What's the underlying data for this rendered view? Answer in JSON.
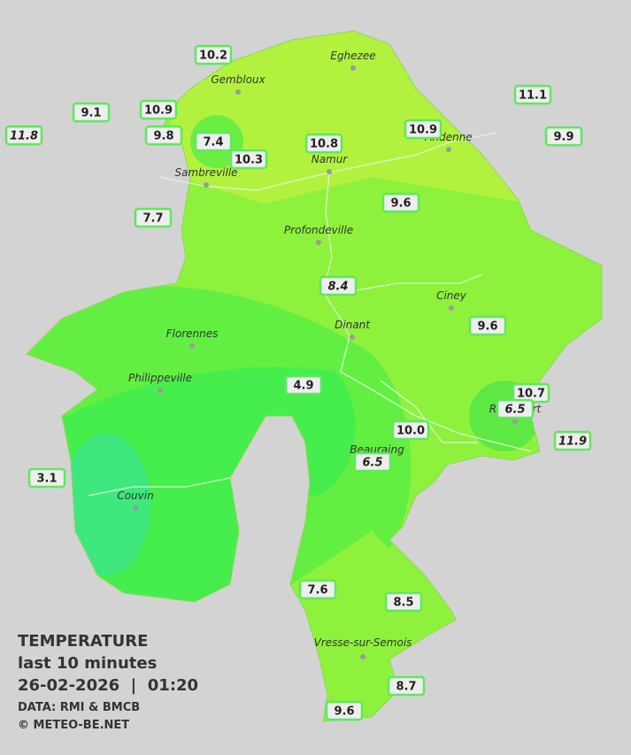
{
  "stations": [
    "10.2",
    "9.1",
    "10.9",
    "11.8",
    "9.8",
    "7.4",
    "10.3",
    "10.8",
    "10.9",
    "11.1",
    "9.9",
    "9.6",
    "7.7",
    "8.4",
    "9.6",
    "4.9",
    "10.7",
    "6.5",
    "10.0",
    "11.9",
    "6.5",
    "3.1",
    "7.6",
    "8.5",
    "8.7",
    "9.6"
  ],
  "places": [
    "Eghezee",
    "Gembloux",
    "Andenne",
    "Namur",
    "Sambreville",
    "Profondeville",
    "Ciney",
    "Dinant",
    "Florennes",
    "Philippeville",
    "Rochefort",
    "Beauraing",
    "Couvin",
    "Vresse-sur-Semois"
  ],
  "legend": {
    "title": "TEMPERATURE",
    "subtitle": "last 10 minutes",
    "datetime": "26-02-2026  |  01:20",
    "source": "DATA: RMI & BMCB",
    "credit": "© METEO-BE.NET"
  }
}
